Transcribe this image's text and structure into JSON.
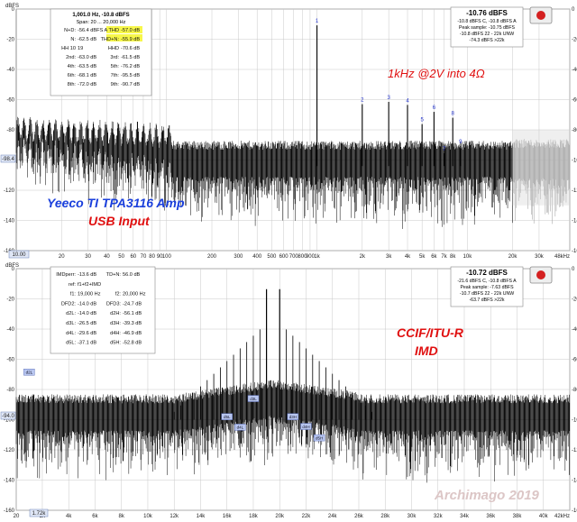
{
  "chart_data": [
    {
      "type": "line",
      "yunit": "dBFS",
      "ylim": [
        -160,
        0
      ],
      "xlim": [
        10,
        48000
      ],
      "xscale": "log",
      "yticks": [
        0,
        -20,
        -40,
        -60,
        -80,
        -100,
        -120,
        -140,
        -160
      ],
      "xticks": [
        {
          "v": 20,
          "label": "20"
        },
        {
          "v": 30,
          "label": "30"
        },
        {
          "v": 40,
          "label": "40"
        },
        {
          "v": 50,
          "label": "50"
        },
        {
          "v": 60,
          "label": "60"
        },
        {
          "v": 70,
          "label": "70"
        },
        {
          "v": 80,
          "label": "80"
        },
        {
          "v": 90,
          "label": "90"
        },
        {
          "v": 100,
          "label": "100"
        },
        {
          "v": 200,
          "label": "200"
        },
        {
          "v": 300,
          "label": "300"
        },
        {
          "v": 400,
          "label": "400"
        },
        {
          "v": 500,
          "label": "500"
        },
        {
          "v": 600,
          "label": "600"
        },
        {
          "v": 700,
          "label": "700"
        },
        {
          "v": 800,
          "label": "800"
        },
        {
          "v": 900,
          "label": "900"
        },
        {
          "v": 1000,
          "label": "1k"
        },
        {
          "v": 2000,
          "label": "2k"
        },
        {
          "v": 3000,
          "label": "3k"
        },
        {
          "v": 4000,
          "label": "4k"
        },
        {
          "v": 5000,
          "label": "5k"
        },
        {
          "v": 6000,
          "label": "6k"
        },
        {
          "v": 7000,
          "label": "7k"
        },
        {
          "v": 8000,
          "label": "8k"
        },
        {
          "v": 10000,
          "label": "10k"
        },
        {
          "v": 20000,
          "label": "20k"
        },
        {
          "v": 30000,
          "label": "30k"
        },
        {
          "v": 48000,
          "label": "48kHz"
        }
      ],
      "x_left_readout": "10.00",
      "y_marker_readout": "-98.4",
      "noise_floor": -104,
      "fundamental": {
        "x": 1000,
        "y": -10.8,
        "label": "1"
      },
      "harmonics": [
        {
          "x": 2000,
          "y": -63.0,
          "label": "2"
        },
        {
          "x": 3000,
          "y": -61.5,
          "label": "3"
        },
        {
          "x": 4000,
          "y": -63.5,
          "label": "4"
        },
        {
          "x": 5000,
          "y": -76.2,
          "label": "5"
        },
        {
          "x": 6000,
          "y": -68.1,
          "label": "6"
        },
        {
          "x": 7000,
          "y": -95.5,
          "label": "7"
        },
        {
          "x": 8000,
          "y": -72.0,
          "label": "8"
        },
        {
          "x": 9000,
          "y": -90.7,
          "label": "9"
        }
      ],
      "annotations": [
        {
          "text": "1kHz @2V into 4Ω",
          "color": "#e01010"
        },
        {
          "text": "Yeeco TI TPA3116 Amp",
          "color": "#1a3fdc"
        },
        {
          "text": "USB Input",
          "color": "#e01010"
        }
      ],
      "stats_header": [
        "1,001.0 Hz, -10.8 dBFS",
        "Span: 20 ... 20,000 Hz"
      ],
      "stats_rows": [
        [
          "N+D:",
          "-56.4 dBFS A",
          "THD",
          "-57.0 dB"
        ],
        [
          "N:",
          "-62.5 dB",
          "THD+N:",
          "-55.9 dB"
        ],
        [
          "HH 10",
          "19",
          "HHD",
          "-70.6 dB"
        ],
        [
          "2nd:",
          "-63.0 dB",
          "3rd:",
          "-61.5 dB"
        ],
        [
          "4th:",
          "-63.5 dB",
          "5th:",
          "-76.2 dB"
        ],
        [
          "6th:",
          "-68.1 dB",
          "7th:",
          "-95.5 dB"
        ],
        [
          "8th:",
          "-72.0 dB",
          "9th:",
          "-90.7 dB"
        ]
      ],
      "level_box": [
        "-10.76 dBFS",
        "-10.8 dBFS C, -10.8 dBFS A",
        "Peak sample: -10.75 dBFS",
        "-10.8 dBFS 22 - 22k UNW",
        "-74.3 dBFS >22k"
      ]
    },
    {
      "type": "line",
      "yunit": "dBFS",
      "ylim": [
        -160,
        0
      ],
      "xlim": [
        20,
        42000
      ],
      "xscale": "linear",
      "yticks": [
        0,
        -20,
        -40,
        -60,
        -80,
        -100,
        -120,
        -140,
        -160
      ],
      "xticks": [
        {
          "v": 20,
          "label": "20"
        },
        {
          "v": 2000,
          "label": "2k"
        },
        {
          "v": 4000,
          "label": "4k"
        },
        {
          "v": 6000,
          "label": "6k"
        },
        {
          "v": 8000,
          "label": "8k"
        },
        {
          "v": 10000,
          "label": "10k"
        },
        {
          "v": 12000,
          "label": "12k"
        },
        {
          "v": 14000,
          "label": "14k"
        },
        {
          "v": 16000,
          "label": "16k"
        },
        {
          "v": 18000,
          "label": "18k"
        },
        {
          "v": 20000,
          "label": "20k"
        },
        {
          "v": 22000,
          "label": "22k"
        },
        {
          "v": 24000,
          "label": "24k"
        },
        {
          "v": 26000,
          "label": "26k"
        },
        {
          "v": 28000,
          "label": "28k"
        },
        {
          "v": 30000,
          "label": "30k"
        },
        {
          "v": 32000,
          "label": "32k"
        },
        {
          "v": 34000,
          "label": "34k"
        },
        {
          "v": 36000,
          "label": "36k"
        },
        {
          "v": 38000,
          "label": "38k"
        },
        {
          "v": 40000,
          "label": "40k"
        },
        {
          "v": 42000,
          "label": "42kHz"
        }
      ],
      "x_left_readout": "1.72k",
      "y_marker_readout": "-94.0",
      "noise_floor": -100,
      "tones": [
        {
          "x": 19000,
          "y": -13.6
        },
        {
          "x": 20000,
          "y": -13.6
        }
      ],
      "imd_products": [
        {
          "x": 1000,
          "y": -68.5,
          "label": "d2L"
        },
        {
          "x": 18000,
          "y": -86.0,
          "label": "d3L"
        },
        {
          "x": 17000,
          "y": -105.0,
          "label": "d4L"
        },
        {
          "x": 21000,
          "y": -98.0,
          "label": "d3H"
        },
        {
          "x": 22000,
          "y": -104.5,
          "label": "d4H"
        },
        {
          "x": 23000,
          "y": -112.0,
          "label": "d5H"
        },
        {
          "x": 16000,
          "y": -98.0,
          "label": "d5L"
        }
      ],
      "annotations": [
        {
          "text": "CCIF/ITU-R",
          "color": "#e01010"
        },
        {
          "text": "IMD",
          "color": "#e01010"
        },
        {
          "text": "Archimago 2019",
          "color": "#d8c4c4"
        }
      ],
      "stats_rows": [
        [
          "IMDperr:",
          "-13.6 dB",
          "TD+N:",
          "56.0 dB"
        ],
        [
          "ref:",
          "f1+f2+IMD",
          "",
          ""
        ],
        [
          "f1:",
          "19,000 Hz",
          "f2:",
          "20,000 Hz"
        ],
        [
          "DFD2:",
          "-14.0 dB",
          "DFD3:",
          "-24.7 dB"
        ],
        [
          "d2L:",
          "-14.0 dB",
          "d2H:",
          "-56.1 dB"
        ],
        [
          "d3L:",
          "-26.5 dB",
          "d3H:",
          "-39.3 dB"
        ],
        [
          "d4L:",
          "-29.6 dB",
          "d4H:",
          "-46.9 dB"
        ],
        [
          "d5L:",
          "-37.1 dB",
          "d5H:",
          "-52.8 dB"
        ]
      ],
      "level_box": [
        "-10.72 dBFS",
        "-21.6 dBFS C, -10.8 dBFS A",
        "Peak sample: -7.63 dBFS",
        "-10.7 dBFS 22 - 22k UNW",
        "-63.7 dBFS >22k"
      ]
    }
  ]
}
